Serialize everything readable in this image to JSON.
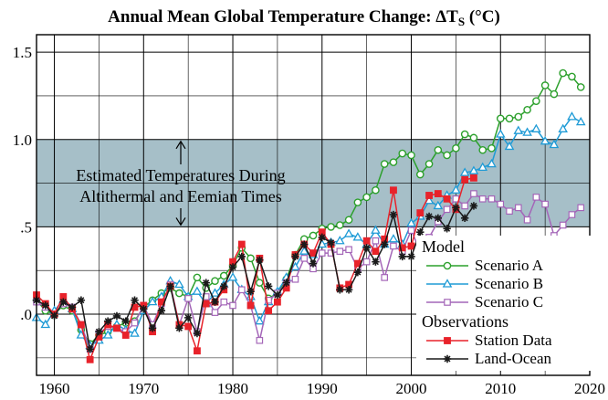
{
  "chart_data": {
    "type": "line",
    "title": "Annual Mean Global Temperature Change: ΔT",
    "title_sub": "S",
    "title_unit": " (°C)",
    "xlim": [
      1958,
      2020
    ],
    "ylim": [
      -0.35,
      1.6
    ],
    "x_ticks": [
      1960,
      1970,
      1980,
      1990,
      2000,
      2010,
      2020
    ],
    "y_ticks": [
      {
        "value": 1.5,
        "label": "1.5"
      },
      {
        "value": 1.0,
        "label": "1.0"
      },
      {
        "value": 0.5,
        "label": ".5"
      },
      {
        "value": 0.0,
        "label": ".0"
      }
    ],
    "x_minor_grid_step": 5,
    "y_minor_grid_step": 0.25,
    "grid": true,
    "band": {
      "y_range": [
        0.5,
        1.0
      ],
      "color": "#a6bfc8",
      "line1": "Estimated Temperatures During",
      "line2": "Altithermal and Eemian Times"
    },
    "legend": {
      "position": "bottom-right",
      "model_header": "Model",
      "obs_header": "Observations"
    },
    "series": [
      {
        "name": "Scenario A",
        "color": "#2ca02c",
        "marker": "circle",
        "x": [
          1958,
          1959,
          1960,
          1961,
          1962,
          1963,
          1964,
          1965,
          1966,
          1967,
          1968,
          1969,
          1970,
          1971,
          1972,
          1973,
          1974,
          1975,
          1976,
          1977,
          1978,
          1979,
          1980,
          1981,
          1982,
          1983,
          1984,
          1985,
          1986,
          1987,
          1988,
          1989,
          1990,
          1991,
          1992,
          1993,
          1994,
          1995,
          1996,
          1997,
          1998,
          1999,
          2000,
          2001,
          2002,
          2003,
          2004,
          2005,
          2006,
          2007,
          2008,
          2009,
          2010,
          2011,
          2012,
          2013,
          2014,
          2015,
          2016,
          2017,
          2018,
          2019
        ],
        "values": [
          0.08,
          0.02,
          0.0,
          0.05,
          0.02,
          -0.09,
          -0.17,
          -0.12,
          -0.1,
          -0.07,
          -0.05,
          -0.04,
          0.04,
          0.08,
          0.12,
          0.15,
          0.12,
          0.1,
          0.21,
          0.15,
          0.19,
          0.22,
          0.28,
          0.38,
          0.32,
          0.18,
          0.09,
          0.12,
          0.2,
          0.34,
          0.43,
          0.45,
          0.49,
          0.5,
          0.51,
          0.54,
          0.64,
          0.67,
          0.71,
          0.86,
          0.87,
          0.92,
          0.91,
          0.8,
          0.86,
          0.94,
          0.91,
          0.95,
          1.03,
          1.01,
          0.94,
          0.95,
          1.12,
          1.12,
          1.13,
          1.17,
          1.22,
          1.31,
          1.26,
          1.38,
          1.36,
          1.3
        ]
      },
      {
        "name": "Scenario B",
        "color": "#1f9bd6",
        "marker": "triangle",
        "x": [
          1958,
          1959,
          1960,
          1961,
          1962,
          1963,
          1964,
          1965,
          1966,
          1967,
          1968,
          1969,
          1970,
          1971,
          1972,
          1973,
          1974,
          1975,
          1976,
          1977,
          1978,
          1979,
          1980,
          1981,
          1982,
          1983,
          1984,
          1985,
          1986,
          1987,
          1988,
          1989,
          1990,
          1991,
          1992,
          1993,
          1994,
          1995,
          1996,
          1997,
          1998,
          1999,
          2000,
          2001,
          2002,
          2003,
          2004,
          2005,
          2006,
          2007,
          2008,
          2009,
          2010,
          2011,
          2012,
          2013,
          2014,
          2015,
          2016,
          2017,
          2018,
          2019
        ],
        "values": [
          -0.02,
          -0.06,
          0.02,
          0.08,
          0.03,
          -0.12,
          -0.18,
          -0.15,
          -0.12,
          -0.06,
          -0.09,
          -0.11,
          0.02,
          0.07,
          0.1,
          0.19,
          0.17,
          0.1,
          0.13,
          0.06,
          0.12,
          0.17,
          0.21,
          0.14,
          0.1,
          -0.04,
          0.07,
          0.13,
          0.21,
          0.27,
          0.36,
          0.34,
          0.4,
          0.41,
          0.42,
          0.46,
          0.44,
          0.4,
          0.48,
          0.4,
          0.43,
          0.4,
          0.52,
          0.56,
          0.65,
          0.62,
          0.68,
          0.71,
          0.81,
          0.82,
          0.84,
          0.86,
          1.03,
          0.96,
          1.05,
          1.04,
          1.06,
          0.99,
          0.97,
          1.06,
          1.13,
          1.1
        ]
      },
      {
        "name": "Scenario C",
        "color": "#a466b8",
        "marker": "square",
        "x": [
          1958,
          1959,
          1960,
          1961,
          1962,
          1963,
          1964,
          1965,
          1966,
          1967,
          1968,
          1969,
          1970,
          1971,
          1972,
          1973,
          1974,
          1975,
          1976,
          1977,
          1978,
          1979,
          1980,
          1981,
          1982,
          1983,
          1984,
          1985,
          1986,
          1987,
          1988,
          1989,
          1990,
          1991,
          1992,
          1993,
          1994,
          1995,
          1996,
          1997,
          1998,
          1999,
          2000,
          2001,
          2002,
          2003,
          2004,
          2005,
          2006,
          2007,
          2008,
          2009,
          2010,
          2011,
          2012,
          2013,
          2014,
          2015,
          2016,
          2017,
          2018,
          2019
        ],
        "values": [
          0.07,
          0.04,
          0.0,
          0.06,
          0.04,
          -0.06,
          -0.2,
          -0.11,
          -0.07,
          -0.08,
          -0.1,
          -0.05,
          0.05,
          -0.06,
          0.06,
          0.17,
          -0.06,
          0.09,
          -0.1,
          0.1,
          0.01,
          0.07,
          0.05,
          0.14,
          0.05,
          -0.15,
          0.08,
          0.12,
          0.18,
          0.2,
          0.32,
          0.26,
          0.35,
          0.35,
          0.36,
          0.37,
          0.26,
          0.3,
          0.42,
          0.21,
          0.39,
          0.36,
          0.48,
          0.36,
          0.44,
          0.53,
          0.6,
          0.66,
          0.62,
          0.69,
          0.66,
          0.66,
          0.63,
          0.59,
          0.61,
          0.54,
          0.67,
          0.63,
          0.45,
          0.51,
          0.57,
          0.61
        ]
      },
      {
        "name": "Station Data",
        "color": "#e8222a",
        "marker": "filled-square",
        "x": [
          1958,
          1959,
          1960,
          1961,
          1962,
          1963,
          1964,
          1965,
          1966,
          1967,
          1968,
          1969,
          1970,
          1971,
          1972,
          1973,
          1974,
          1975,
          1976,
          1977,
          1978,
          1979,
          1980,
          1981,
          1982,
          1983,
          1984,
          1985,
          1986,
          1987,
          1988,
          1989,
          1990,
          1991,
          1992,
          1993,
          1994,
          1995,
          1996,
          1997,
          1998,
          1999,
          2000,
          2001,
          2002,
          2003,
          2004,
          2005,
          2006,
          2007
        ],
        "values": [
          0.11,
          0.06,
          0.0,
          0.1,
          0.03,
          -0.06,
          -0.26,
          -0.13,
          -0.06,
          -0.08,
          -0.12,
          0.04,
          0.05,
          -0.1,
          0.07,
          0.16,
          -0.06,
          -0.07,
          -0.21,
          0.06,
          0.07,
          0.14,
          0.3,
          0.4,
          0.05,
          0.32,
          0.02,
          0.07,
          0.15,
          0.34,
          0.4,
          0.35,
          0.47,
          0.4,
          0.15,
          0.17,
          0.29,
          0.42,
          0.36,
          0.43,
          0.71,
          0.38,
          0.39,
          0.58,
          0.68,
          0.69,
          0.66,
          0.6,
          0.77,
          0.78
        ]
      },
      {
        "name": "Land-Ocean",
        "color": "#1a1a1a",
        "marker": "star",
        "x": [
          1958,
          1959,
          1960,
          1961,
          1962,
          1963,
          1964,
          1965,
          1966,
          1967,
          1968,
          1969,
          1970,
          1971,
          1972,
          1973,
          1974,
          1975,
          1976,
          1977,
          1978,
          1979,
          1980,
          1981,
          1982,
          1983,
          1984,
          1985,
          1986,
          1987,
          1988,
          1989,
          1990,
          1991,
          1992,
          1993,
          1994,
          1995,
          1996,
          1997,
          1998,
          1999,
          2000,
          2001,
          2002,
          2003,
          2004,
          2005,
          2006,
          2007
        ],
        "values": [
          0.08,
          0.05,
          -0.01,
          0.07,
          0.04,
          0.08,
          -0.2,
          -0.1,
          -0.04,
          -0.01,
          -0.04,
          0.08,
          0.03,
          -0.08,
          0.02,
          0.16,
          -0.08,
          -0.02,
          -0.11,
          0.18,
          0.07,
          0.16,
          0.27,
          0.33,
          0.13,
          0.31,
          0.16,
          0.11,
          0.18,
          0.33,
          0.4,
          0.29,
          0.44,
          0.41,
          0.14,
          0.14,
          0.24,
          0.38,
          0.3,
          0.4,
          0.57,
          0.33,
          0.33,
          0.47,
          0.56,
          0.55,
          0.49,
          0.61,
          0.55,
          0.62
        ]
      }
    ]
  }
}
